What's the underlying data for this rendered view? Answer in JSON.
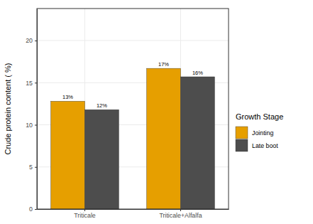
{
  "chart_data": {
    "type": "bar",
    "y_label": "Crude protein content ( %)",
    "legend_title": "Growth Stage",
    "categories": [
      "Triticale",
      "Triticale+Alfalfa"
    ],
    "series": [
      {
        "name": "Jointing",
        "color": "#E69F00",
        "values": [
          12.8,
          16.7
        ],
        "value_labels": [
          "13%",
          "17%"
        ]
      },
      {
        "name": "Late boot",
        "color": "#4D4D4D",
        "values": [
          11.8,
          15.7
        ],
        "value_labels": [
          "12%",
          "16%"
        ]
      }
    ],
    "ylim": [
      0,
      23.8
    ],
    "yticks": [
      0,
      5,
      10,
      15,
      20
    ],
    "grid": true,
    "data_labels": true,
    "legend": "right"
  }
}
